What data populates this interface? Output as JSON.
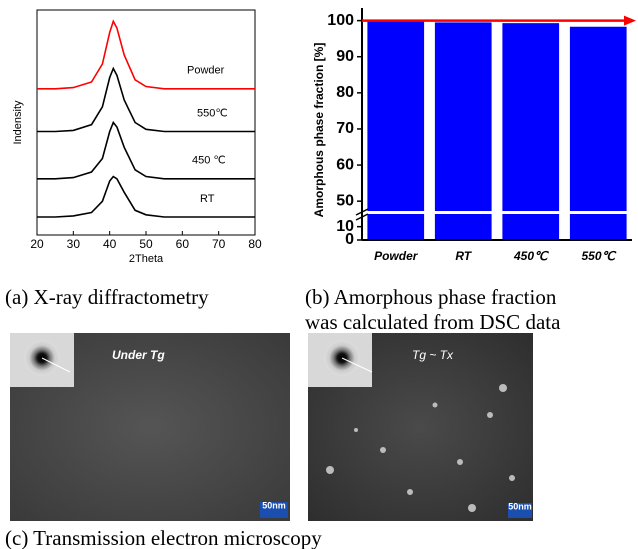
{
  "chart_data": [
    {
      "type": "line",
      "xlabel": "2Theta",
      "ylabel": "Indensity",
      "x": [
        20,
        25,
        30,
        35,
        38,
        40,
        41,
        42,
        44,
        47,
        50,
        55,
        60,
        70,
        80
      ],
      "xlim": [
        20,
        80
      ],
      "xticks": [
        20,
        30,
        40,
        50,
        60,
        70,
        80
      ],
      "ylim": [
        0,
        10
      ],
      "series": [
        {
          "name": "Powder",
          "color": "#ff0000",
          "values": [
            6.5,
            6.5,
            6.55,
            6.8,
            7.6,
            9.0,
            9.5,
            9.2,
            8.0,
            6.9,
            6.6,
            6.5,
            6.5,
            6.5,
            6.5
          ]
        },
        {
          "name": "550℃",
          "color": "#000000",
          "values": [
            4.6,
            4.6,
            4.65,
            4.9,
            5.7,
            7.0,
            7.4,
            7.1,
            6.0,
            5.0,
            4.7,
            4.6,
            4.6,
            4.6,
            4.6
          ]
        },
        {
          "name": "450 ℃",
          "color": "#000000",
          "values": [
            2.5,
            2.5,
            2.55,
            2.8,
            3.4,
            4.6,
            5.0,
            4.8,
            3.9,
            2.9,
            2.6,
            2.5,
            2.5,
            2.5,
            2.5
          ]
        },
        {
          "name": "RT",
          "color": "#000000",
          "values": [
            0.8,
            0.8,
            0.85,
            1.0,
            1.5,
            2.4,
            2.6,
            2.5,
            1.9,
            1.1,
            0.9,
            0.8,
            0.8,
            0.8,
            0.8
          ]
        }
      ]
    },
    {
      "type": "bar",
      "ylabel": "Amorphous phase fraction [%]",
      "categories": [
        "Powder",
        "RT",
        "450℃",
        "550℃"
      ],
      "values": [
        100,
        99.5,
        99.3,
        98.3
      ],
      "color": "#0000ff",
      "ylim": [
        0,
        101
      ],
      "axis_break": [
        12,
        47
      ],
      "yticks": [
        0,
        10,
        50,
        60,
        70,
        80,
        90,
        100
      ],
      "ref_line": 100,
      "ref_color": "#ff0000"
    }
  ],
  "captions": {
    "a": "(a) X-ray diffractometry",
    "b1": "(b) Amorphous phase fraction",
    "b2": "was calculated from DSC data",
    "c": "(c) Transmission electron microscopy"
  },
  "images": [
    {
      "label": "Under Tg",
      "scale": "50nm"
    },
    {
      "label": "Tg ~ Tx",
      "scale": "50nm"
    }
  ]
}
